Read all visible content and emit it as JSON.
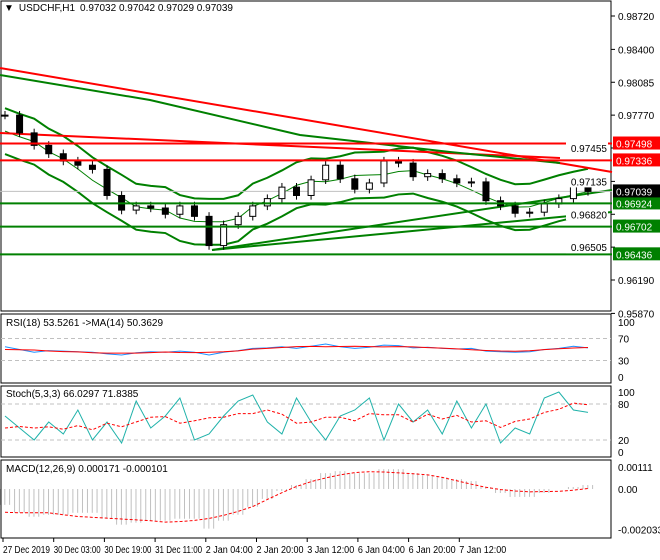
{
  "header": {
    "symbol_label": "USDCHF,H1",
    "ohlc": "0.97032 0.97042 0.97029 0.97039"
  },
  "colors": {
    "up_level": "#ff0000",
    "down_level": "#008000",
    "bands": "#008000",
    "trend_red": "#ff0000",
    "rsi": "#1e90ff",
    "signal": "#ff0000",
    "stoch_main": "#20b2aa",
    "macd_hist": "#c0c0c0"
  },
  "chart_data": [
    {
      "type": "line",
      "title": "USDCHF,H1",
      "price_ticks": [
        "0.98720",
        "0.98400",
        "0.98085",
        "0.97770",
        "0.97455",
        "0.97135",
        "0.96820",
        "0.96505",
        "0.96190",
        "0.95870"
      ],
      "ylim": [
        0.9587,
        0.9885
      ],
      "x_ticks": [
        "27 Dec 2019",
        "30 Dec 03:00",
        "30 Dec 19:00",
        "31 Dec 11:00",
        "2 Jan 04:00",
        "2 Jan 20:00",
        "3 Jan 12:00",
        "6 Jan 04:00",
        "6 Jan 20:00",
        "7 Jan 12:00"
      ],
      "close": [
        0.9777,
        0.976,
        0.9748,
        0.974,
        0.9733,
        0.9729,
        0.9725,
        0.97,
        0.9686,
        0.969,
        0.9688,
        0.9682,
        0.969,
        0.968,
        0.9652,
        0.9672,
        0.968,
        0.969,
        0.9697,
        0.9708,
        0.97,
        0.9715,
        0.9729,
        0.9716,
        0.9706,
        0.9712,
        0.9733,
        0.9731,
        0.9718,
        0.9721,
        0.9716,
        0.9712,
        0.9713,
        0.9695,
        0.969,
        0.9683,
        0.9684,
        0.9692,
        0.9697,
        0.971,
        0.97039
      ],
      "current_price": "0.97039",
      "levels": [
        {
          "value": 0.97498,
          "label": "0.97498",
          "color": "#ff0000"
        },
        {
          "value": 0.97336,
          "label": "0.97336",
          "color": "#ff0000"
        },
        {
          "value": 0.96924,
          "label": "0.96924",
          "color": "#008000"
        },
        {
          "value": 0.96702,
          "label": "0.96702",
          "color": "#008000"
        },
        {
          "value": 0.96436,
          "label": "0.96436",
          "color": "#008000"
        }
      ]
    },
    {
      "type": "line",
      "title": "RSI(18) 53.5261  ->MA(14) 50.3629",
      "ylim": [
        0,
        100
      ],
      "ticks": [
        "100",
        "70",
        "30",
        "0"
      ],
      "levels": [
        70,
        30
      ],
      "rsi": [
        55,
        50,
        45,
        48,
        47,
        46,
        45,
        42,
        40,
        44,
        46,
        45,
        47,
        45,
        40,
        45,
        48,
        52,
        53,
        55,
        52,
        56,
        60,
        55,
        52,
        54,
        58,
        57,
        53,
        54,
        52,
        51,
        52,
        47,
        46,
        45,
        46,
        50,
        52,
        56,
        53
      ]
    },
    {
      "type": "line",
      "title": "Stoch(5,3,3) 66.0297 71.8385",
      "ylim": [
        0,
        100
      ],
      "ticks": [
        "100",
        "80",
        "20",
        "0"
      ],
      "levels": [
        80,
        20
      ],
      "main": [
        60,
        40,
        20,
        50,
        30,
        70,
        20,
        50,
        15,
        85,
        40,
        60,
        90,
        20,
        30,
        60,
        85,
        95,
        50,
        30,
        90,
        50,
        20,
        60,
        70,
        90,
        20,
        80,
        50,
        70,
        30,
        85,
        40,
        80,
        15,
        40,
        30,
        90,
        100,
        70,
        66
      ]
    },
    {
      "type": "bar",
      "title": "MACD(12,26,9) 0.000171 -0.000101",
      "ylim": [
        -0.002033,
        0.00111
      ],
      "ticks": [
        "0.00111",
        "0.00",
        "-0.002033"
      ],
      "hist": [
        -0.0008,
        -0.0012,
        -0.0014,
        -0.0013,
        -0.0013,
        -0.0012,
        -0.0012,
        -0.0015,
        -0.0018,
        -0.0017,
        -0.0016,
        -0.0016,
        -0.0015,
        -0.0015,
        -0.002,
        -0.0016,
        -0.0013,
        -0.0009,
        -0.0005,
        -0.0001,
        0.0002,
        0.0005,
        0.0008,
        0.0009,
        0.0008,
        0.0008,
        0.001,
        0.001,
        0.0008,
        0.0007,
        0.0006,
        0.0005,
        0.0004,
        0.0001,
        -0.0002,
        -0.0004,
        -0.0004,
        -0.0002,
        0.0,
        0.0001,
        0.0002
      ]
    }
  ]
}
